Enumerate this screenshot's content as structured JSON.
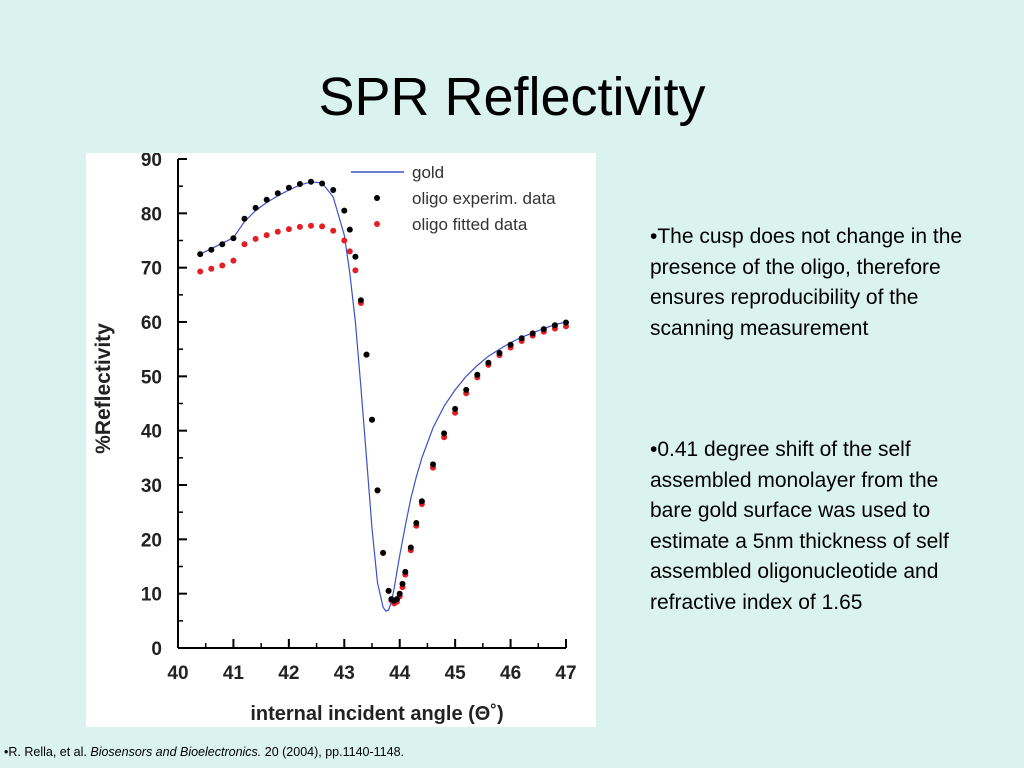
{
  "slide": {
    "title": "SPR Reflectivity",
    "bullets": [
      "•The cusp does not change in the presence of the oligo, therefore ensures reproducibility of the scanning measurement",
      "•0.41 degree shift of the self assembled monolayer from the bare gold surface was used to estimate a 5nm thickness of self assembled oligonucleotide and refractive index of 1.65"
    ],
    "citation": {
      "prefix": "•R. Rella, et al. ",
      "journal": "Biosensors and Bioelectronics.",
      "suffix": " 20 (2004), pp.1140-1148."
    }
  },
  "chart_data": {
    "type": "line",
    "title": "",
    "xlabel": "internal incident angle (Θ˚)",
    "ylabel": "%Reflectivity",
    "xlim": [
      40,
      47
    ],
    "ylim": [
      0,
      90
    ],
    "xticks": [
      40,
      41,
      42,
      43,
      44,
      45,
      46,
      47
    ],
    "yticks": [
      0,
      10,
      20,
      30,
      40,
      50,
      60,
      70,
      80,
      90
    ],
    "grid": false,
    "legend_position": "top-right",
    "series": [
      {
        "name": "gold",
        "style": "line",
        "color": "#3c50c8",
        "x": [
          40.4,
          40.6,
          40.8,
          41.0,
          41.2,
          41.4,
          41.6,
          41.8,
          42.0,
          42.2,
          42.4,
          42.6,
          42.8,
          43.0,
          43.1,
          43.2,
          43.3,
          43.4,
          43.5,
          43.6,
          43.7,
          43.75,
          43.8,
          43.85,
          43.9,
          43.95,
          44.0,
          44.1,
          44.2,
          44.3,
          44.4,
          44.6,
          44.8,
          45.0,
          45.2,
          45.4,
          45.6,
          45.8,
          46.0,
          46.2,
          46.4,
          46.6,
          46.8,
          47.0
        ],
        "y": [
          72.5,
          73.5,
          74.5,
          75.5,
          78.5,
          80.5,
          82.0,
          83.2,
          84.3,
          85.2,
          85.8,
          85.6,
          83.0,
          76.0,
          69.0,
          60.0,
          48.0,
          35.0,
          22.0,
          12.0,
          7.5,
          6.8,
          7.0,
          8.5,
          11.0,
          14.0,
          17.0,
          22.5,
          27.5,
          31.5,
          35.0,
          40.5,
          44.5,
          47.5,
          50.0,
          52.0,
          53.7,
          55.0,
          56.2,
          57.2,
          58.0,
          58.8,
          59.5,
          60.0
        ]
      },
      {
        "name": "oligo experim. data",
        "style": "markers",
        "color": "#000000",
        "x": [
          40.4,
          40.6,
          40.8,
          41.0,
          41.2,
          41.4,
          41.6,
          41.8,
          42.0,
          42.2,
          42.4,
          42.6,
          42.8,
          43.0,
          43.1,
          43.2,
          43.3,
          43.4,
          43.5,
          43.6,
          43.7,
          43.8,
          43.85,
          43.9,
          43.95,
          44.0,
          44.05,
          44.1,
          44.2,
          44.3,
          44.4,
          44.6,
          44.8,
          45.0,
          45.2,
          45.4,
          45.6,
          45.8,
          46.0,
          46.2,
          46.4,
          46.6,
          46.8,
          47.0
        ],
        "y": [
          72.5,
          73.3,
          74.3,
          75.4,
          79.0,
          81.0,
          82.5,
          83.7,
          84.7,
          85.4,
          85.8,
          85.5,
          84.3,
          80.5,
          77.0,
          72.0,
          64.0,
          54.0,
          42.0,
          29.0,
          17.5,
          10.5,
          9.0,
          8.7,
          9.0,
          10.0,
          11.8,
          14.0,
          18.5,
          23.0,
          27.0,
          33.8,
          39.5,
          44.0,
          47.5,
          50.3,
          52.5,
          54.3,
          55.8,
          57.0,
          57.9,
          58.7,
          59.4,
          59.9
        ]
      },
      {
        "name": "oligo fitted data",
        "style": "markers",
        "color": "#e31e24",
        "x": [
          40.4,
          40.6,
          40.8,
          41.0,
          41.2,
          41.4,
          41.6,
          41.8,
          42.0,
          42.2,
          42.4,
          42.6,
          42.8,
          43.0,
          43.1,
          43.2,
          43.3,
          43.4,
          43.5,
          43.6,
          43.7,
          43.8,
          43.85,
          43.9,
          43.95,
          44.0,
          44.05,
          44.1,
          44.2,
          44.3,
          44.4,
          44.6,
          44.8,
          45.0,
          45.2,
          45.4,
          45.6,
          45.8,
          46.0,
          46.2,
          46.4,
          46.6,
          46.8,
          47.0
        ],
        "y": [
          69.3,
          69.8,
          70.4,
          71.3,
          74.3,
          75.3,
          76.0,
          76.6,
          77.1,
          77.5,
          77.7,
          77.6,
          76.8,
          75.0,
          73.0,
          69.5,
          63.5,
          54.0,
          42.0,
          29.0,
          17.5,
          10.5,
          8.8,
          8.2,
          8.5,
          9.5,
          11.2,
          13.5,
          18.0,
          22.5,
          26.5,
          33.2,
          38.8,
          43.3,
          46.9,
          49.8,
          52.1,
          53.9,
          55.3,
          56.5,
          57.5,
          58.2,
          58.8,
          59.2
        ]
      }
    ]
  }
}
